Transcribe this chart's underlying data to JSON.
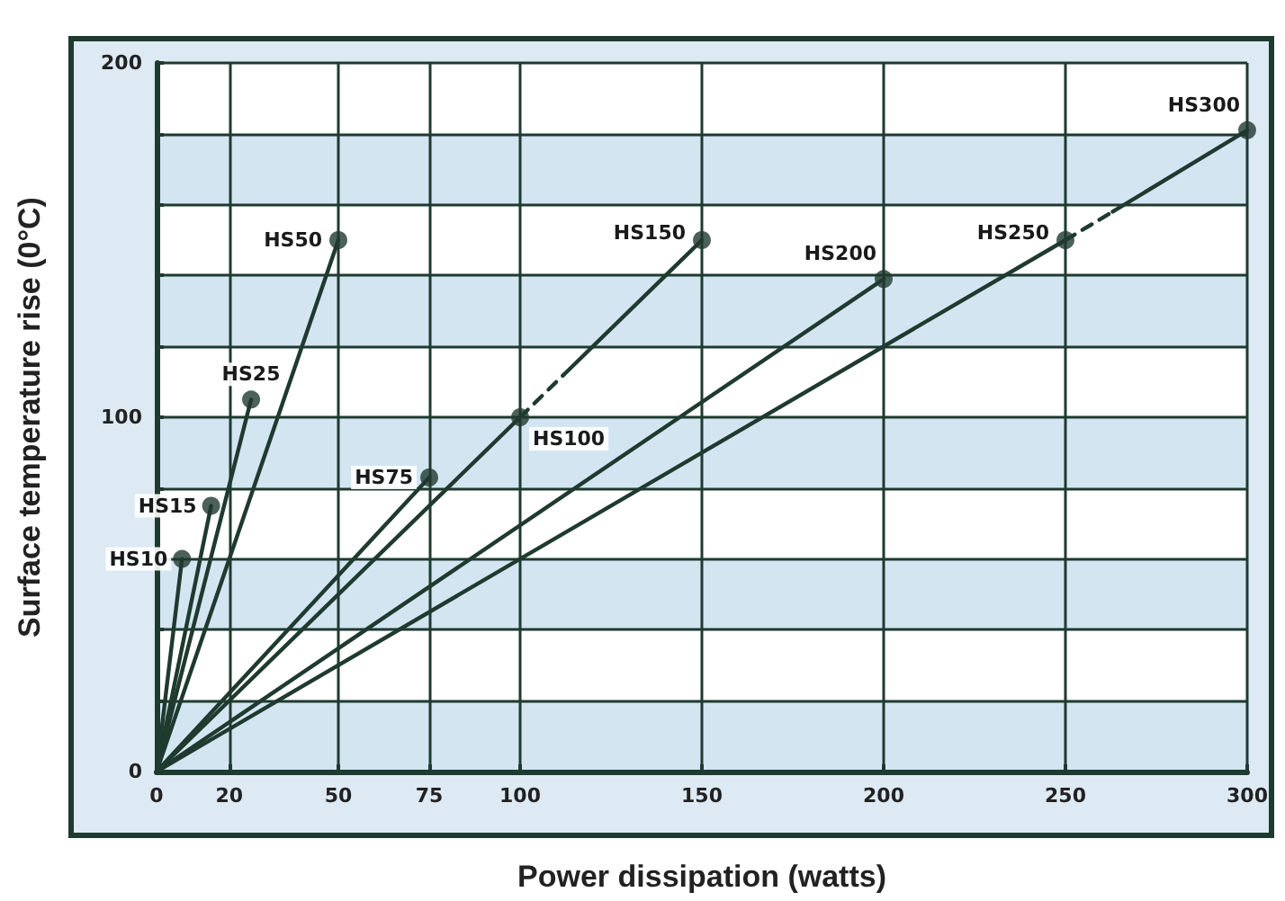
{
  "chart_data": {
    "type": "line",
    "xlabel": "Power dissipation (watts)",
    "ylabel": "Surface temperature rise (0°C)",
    "xlim": [
      0,
      300
    ],
    "xticks": [
      0,
      20,
      50,
      75,
      100,
      150,
      200,
      250,
      300
    ],
    "ylim": [
      0,
      200
    ],
    "yticks": [
      0,
      {
        "value": 20,
        "label": null
      },
      {
        "value": 40,
        "label": null
      },
      {
        "value": 60,
        "label": null
      },
      {
        "value": 80,
        "label": null
      },
      100,
      {
        "value": 120,
        "label": null
      },
      {
        "value": 140,
        "label": null
      },
      {
        "value": 160,
        "label": null
      },
      {
        "value": 180,
        "label": null
      },
      200
    ],
    "grid": true,
    "series": [
      {
        "color": "#1f3a2f",
        "x": [
          0,
          7
        ],
        "values": [
          0,
          60
        ],
        "marker": "none",
        "line_style": "solid"
      },
      {
        "color": "#1f3a2f",
        "x": [
          0,
          15
        ],
        "values": [
          0,
          75
        ],
        "marker": "none",
        "line_style": "solid"
      },
      {
        "color": "#1f3a2f",
        "x": [
          0,
          26
        ],
        "values": [
          0,
          105
        ],
        "marker": "none",
        "line_style": "solid"
      },
      {
        "color": "#1f3a2f",
        "x": [
          0,
          50
        ],
        "values": [
          0,
          150
        ],
        "marker": "none",
        "line_style": "solid"
      },
      {
        "color": "#1f3a2f",
        "x": [
          0,
          75
        ],
        "values": [
          0,
          83
        ],
        "marker": "none",
        "line_style": "solid"
      },
      {
        "color": "#1f3a2f",
        "x": [
          0,
          100
        ],
        "values": [
          0,
          100
        ],
        "marker": "none",
        "line_style": "solid"
      },
      {
        "color": "#1f3a2f",
        "x": [
          100,
          112
        ],
        "values": [
          100,
          112
        ],
        "marker": "none",
        "line_style": "dashed"
      },
      {
        "color": "#1f3a2f",
        "x": [
          112,
          150
        ],
        "values": [
          112,
          150
        ],
        "marker": "none",
        "line_style": "solid"
      },
      {
        "color": "#1f3a2f",
        "x": [
          0,
          200
        ],
        "values": [
          0,
          139
        ],
        "marker": "none",
        "line_style": "solid"
      },
      {
        "color": "#1f3a2f",
        "x": [
          0,
          250
        ],
        "values": [
          0,
          150
        ],
        "marker": "none",
        "line_style": "solid"
      },
      {
        "color": "#1f3a2f",
        "x": [
          250,
          263
        ],
        "values": [
          150,
          158
        ],
        "marker": "none",
        "line_style": "dashed"
      },
      {
        "color": "#1f3a2f",
        "x": [
          263,
          300
        ],
        "values": [
          158,
          181
        ],
        "marker": "none",
        "line_style": "solid"
      },
      {
        "type": "scatter",
        "color": "#1f3a2f",
        "marker": "circle",
        "x": [
          7,
          15,
          26,
          50,
          75,
          100,
          150,
          200,
          250,
          300
        ],
        "values": [
          60,
          75,
          105,
          150,
          83,
          100,
          150,
          139,
          150,
          181
        ]
      }
    ],
    "annotations": [
      {
        "text": "HS10",
        "x": 7,
        "y": 60
      },
      {
        "text": "HS15",
        "x": 15,
        "y": 75
      },
      {
        "text": "HS25",
        "x": 26,
        "y": 105
      },
      {
        "text": "HS50",
        "x": 50,
        "y": 150
      },
      {
        "text": "HS75",
        "x": 75,
        "y": 83
      },
      {
        "text": "HS100",
        "x": 100,
        "y": 100
      },
      {
        "text": "HS150",
        "x": 150,
        "y": 150
      },
      {
        "text": "HS200",
        "x": 200,
        "y": 139
      },
      {
        "text": "HS250",
        "x": 250,
        "y": 150
      },
      {
        "text": "HS300",
        "x": 300,
        "y": 181
      }
    ]
  }
}
